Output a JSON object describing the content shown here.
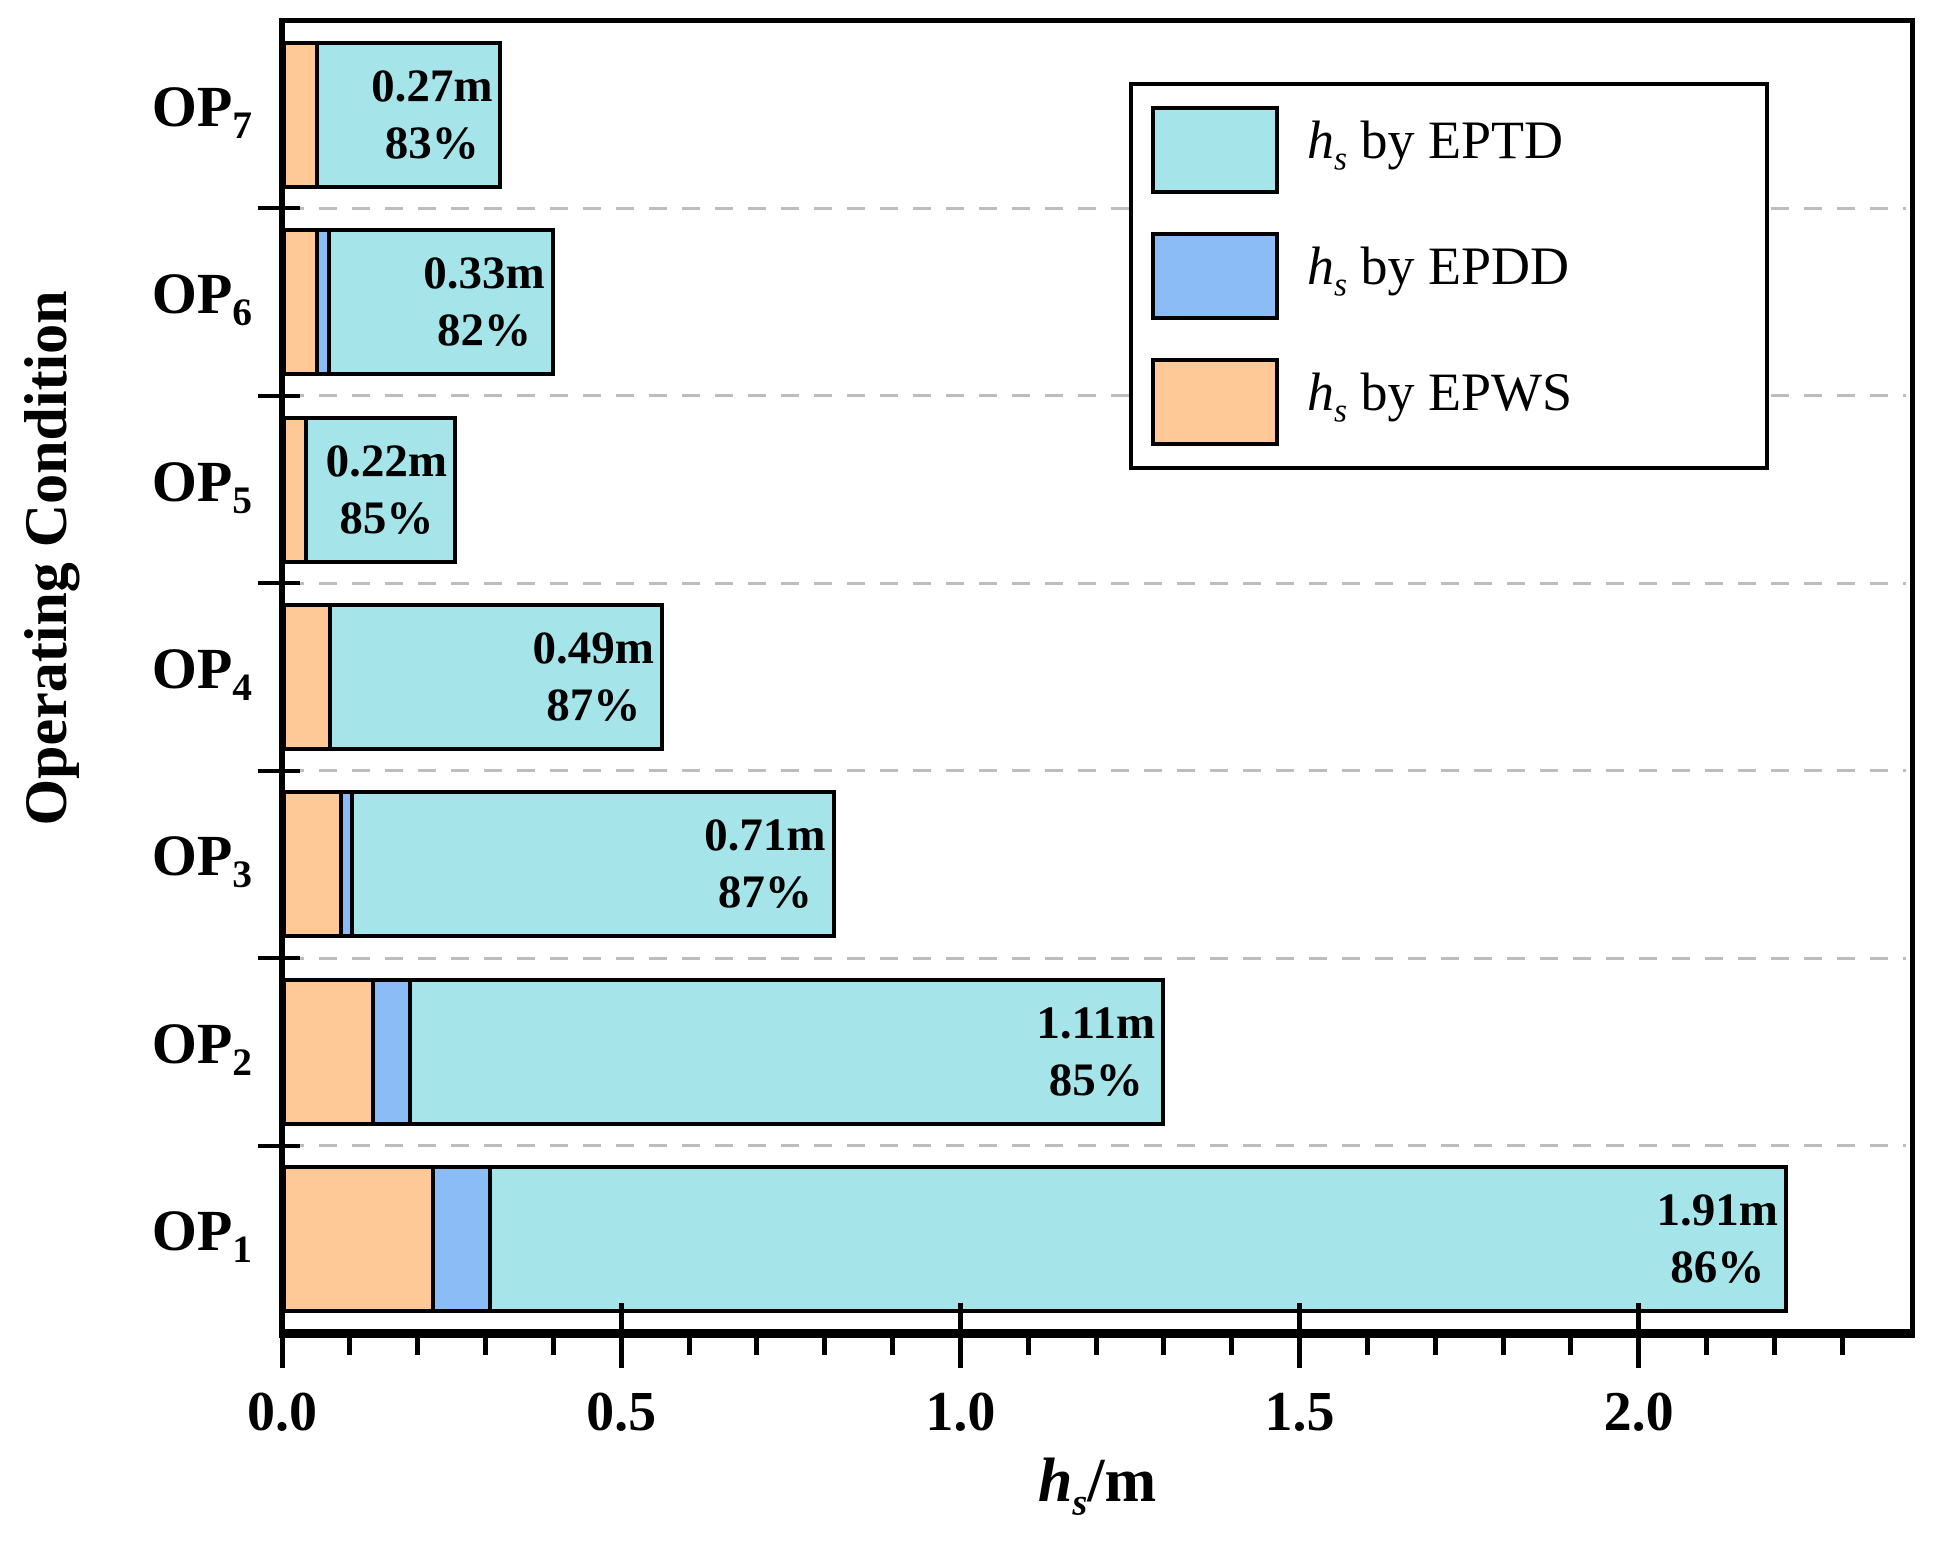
{
  "chart_data": {
    "type": "bar",
    "orientation": "horizontal",
    "stacked": true,
    "xlabel_parts": {
      "italic": "h",
      "sub": "s",
      "rest": "/m"
    },
    "ylabel": "Operating Condition",
    "xlim": [
      0,
      2.4
    ],
    "x_major_ticks": [
      {
        "value": 0.0,
        "label": "0.0"
      },
      {
        "value": 0.5,
        "label": "0.5"
      },
      {
        "value": 1.0,
        "label": "1.0"
      },
      {
        "value": 1.5,
        "label": "1.5"
      },
      {
        "value": 2.0,
        "label": "2.0"
      }
    ],
    "x_minor_tick_step": 0.1,
    "grid": "dashed horizontal lines between category rows",
    "series_order_in_bar": [
      "EPWS",
      "EPDD",
      "EPTD"
    ],
    "legend": {
      "position": "top-right-inside",
      "entries": [
        {
          "series": "EPTD",
          "symbol_italic": "h",
          "symbol_sub": "s",
          "text": " by EPTD",
          "color": "#A5E5E9"
        },
        {
          "series": "EPDD",
          "symbol_italic": "h",
          "symbol_sub": "s",
          "text": " by EPDD",
          "color": "#8CBCF6"
        },
        {
          "series": "EPWS",
          "symbol_italic": "h",
          "symbol_sub": "s",
          "text": " by EPWS",
          "color": "#FFC896"
        }
      ]
    },
    "rows": [
      {
        "label": "OP",
        "sub": "7",
        "epws": 0.055,
        "epdd": 0.0,
        "eptd": 0.27,
        "value_label": "0.27m",
        "pct_label": "83%"
      },
      {
        "label": "OP",
        "sub": "6",
        "epws": 0.055,
        "epdd": 0.017,
        "eptd": 0.33,
        "value_label": "0.33m",
        "pct_label": "82%"
      },
      {
        "label": "OP",
        "sub": "5",
        "epws": 0.038,
        "epdd": 0.0,
        "eptd": 0.22,
        "value_label": "0.22m",
        "pct_label": "85%"
      },
      {
        "label": "OP",
        "sub": "4",
        "epws": 0.073,
        "epdd": 0.0,
        "eptd": 0.49,
        "value_label": "0.49m",
        "pct_label": "87%"
      },
      {
        "label": "OP",
        "sub": "3",
        "epws": 0.09,
        "epdd": 0.016,
        "eptd": 0.71,
        "value_label": "0.71m",
        "pct_label": "87%"
      },
      {
        "label": "OP",
        "sub": "2",
        "epws": 0.137,
        "epdd": 0.055,
        "eptd": 1.11,
        "value_label": "1.11m",
        "pct_label": "85%"
      },
      {
        "label": "OP",
        "sub": "1",
        "epws": 0.225,
        "epdd": 0.085,
        "eptd": 1.91,
        "value_label": "1.91m",
        "pct_label": "86%"
      }
    ],
    "colors": {
      "eptd": "#A5E5E9",
      "epdd": "#8CBCF6",
      "epws": "#FFC896",
      "grid": "#BDBDBD",
      "axis": "#000000"
    }
  }
}
